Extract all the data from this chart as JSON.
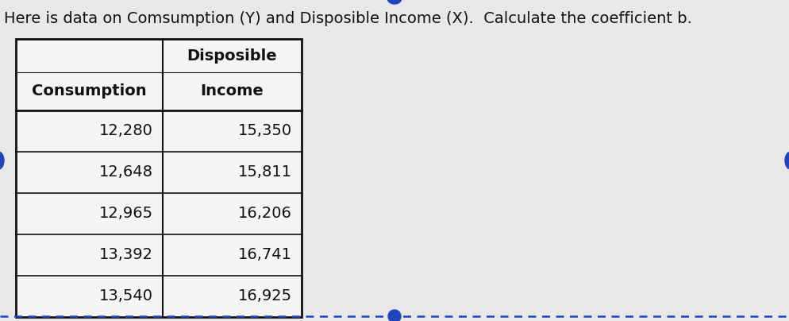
{
  "title": "Here is data on Comsumption (Y) and Disposible Income (X).  Calculate the coefficient b.",
  "col_header_0": "Consumption",
  "col_header_1_line1": "Disposible",
  "col_header_1_line2": "Income",
  "rows": [
    [
      "12,280",
      "15,350"
    ],
    [
      "12,648",
      "15,811"
    ],
    [
      "12,965",
      "16,206"
    ],
    [
      "13,392",
      "16,741"
    ],
    [
      "13,540",
      "16,925"
    ]
  ],
  "background_color": "#e8e8e8",
  "table_bg": "#f5f5f5",
  "title_fontsize": 14,
  "header_fontsize": 14,
  "data_fontsize": 14,
  "text_color": "#111111",
  "border_color": "#111111",
  "dot_color": "#2244bb"
}
